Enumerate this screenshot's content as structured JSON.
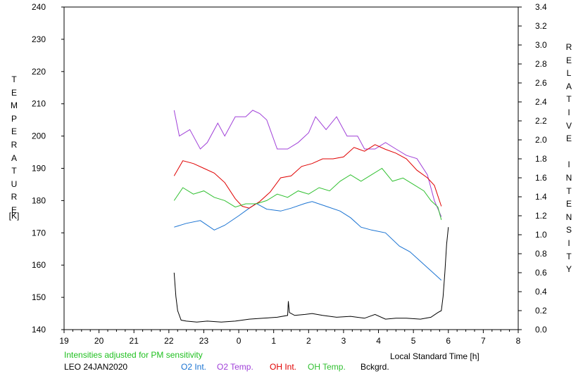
{
  "chart_data": {
    "type": "line",
    "ylabel_left": "TEMPERATURE",
    "ylabel_left_unit": "[K]",
    "ylabel_right": "RELATIVE INTENSITY",
    "xlabel": "Local Standard Time [h]",
    "note": "Intensities adjusted for PM sensitivity",
    "station_date": "LEO 24JAN2020",
    "x_ticks": [
      "19",
      "20",
      "21",
      "22",
      "23",
      "0",
      "1",
      "2",
      "3",
      "4",
      "5",
      "6",
      "7",
      "8"
    ],
    "y_left_ticks": [
      140,
      150,
      160,
      170,
      180,
      190,
      200,
      210,
      220,
      230,
      240
    ],
    "y_right_ticks": [
      "0.0",
      "0.2",
      "0.4",
      "0.6",
      "0.8",
      "1.0",
      "1.2",
      "1.4",
      "1.6",
      "1.8",
      "2.0",
      "2.2",
      "2.4",
      "2.6",
      "2.8",
      "3.0",
      "3.2",
      "3.4"
    ],
    "xlim": [
      19,
      32
    ],
    "ylim_left": [
      140,
      240
    ],
    "ylim_right": [
      0,
      3.4
    ],
    "colors": {
      "o2_int": "#1a73d2",
      "o2_temp": "#a040d8",
      "oh_int": "#e00000",
      "oh_temp": "#30c030",
      "bckgrd": "#000000",
      "note": "#20c020"
    },
    "legend": [
      "O2 Int.",
      "O2 Temp.",
      "OH Int.",
      "OH Temp.",
      "Bckgrd."
    ],
    "series": [
      {
        "name": "O2 Int.",
        "axis": "right",
        "x": [
          22.15,
          22.5,
          22.9,
          23.3,
          23.6,
          24.0,
          24.3,
          24.5,
          24.8,
          25.2,
          25.5,
          25.9,
          26.1,
          26.5,
          26.9,
          27.2,
          27.5,
          27.8,
          28.2,
          28.6,
          28.9,
          29.2,
          29.5,
          29.8
        ],
        "y": [
          1.08,
          1.12,
          1.15,
          1.05,
          1.1,
          1.2,
          1.28,
          1.33,
          1.27,
          1.25,
          1.28,
          1.33,
          1.35,
          1.3,
          1.25,
          1.18,
          1.08,
          1.05,
          1.02,
          0.88,
          0.82,
          0.72,
          0.62,
          0.52
        ]
      },
      {
        "name": "O2 Temp.",
        "axis": "left",
        "x": [
          22.15,
          22.3,
          22.6,
          22.9,
          23.1,
          23.4,
          23.6,
          23.9,
          24.2,
          24.4,
          24.6,
          24.8,
          25.1,
          25.4,
          25.7,
          26.0,
          26.2,
          26.5,
          26.8,
          27.1,
          27.4,
          27.6,
          27.9,
          28.2,
          28.5,
          28.8,
          29.1,
          29.4,
          29.6,
          29.8
        ],
        "y": [
          208,
          200,
          202,
          196,
          198,
          204,
          200,
          206,
          206,
          208,
          207,
          205,
          196,
          196,
          198,
          201,
          206,
          202,
          206,
          200,
          200,
          196,
          196,
          198,
          196,
          194,
          193,
          188,
          180,
          175
        ]
      },
      {
        "name": "OH Int.",
        "axis": "right",
        "x": [
          22.15,
          22.4,
          22.7,
          23.0,
          23.3,
          23.6,
          23.9,
          24.1,
          24.3,
          24.6,
          24.9,
          25.2,
          25.5,
          25.8,
          26.1,
          26.4,
          26.7,
          27.0,
          27.3,
          27.6,
          27.9,
          28.2,
          28.5,
          28.8,
          29.1,
          29.4,
          29.6,
          29.8
        ],
        "y": [
          1.62,
          1.78,
          1.75,
          1.7,
          1.65,
          1.55,
          1.38,
          1.3,
          1.28,
          1.35,
          1.45,
          1.6,
          1.62,
          1.72,
          1.75,
          1.8,
          1.8,
          1.82,
          1.92,
          1.88,
          1.95,
          1.9,
          1.86,
          1.8,
          1.68,
          1.6,
          1.52,
          1.3
        ]
      },
      {
        "name": "OH Temp.",
        "axis": "left",
        "x": [
          22.15,
          22.4,
          22.7,
          23.0,
          23.3,
          23.6,
          23.9,
          24.2,
          24.5,
          24.8,
          25.1,
          25.4,
          25.7,
          26.0,
          26.3,
          26.6,
          26.9,
          27.2,
          27.5,
          27.8,
          28.1,
          28.4,
          28.7,
          29.0,
          29.3,
          29.5,
          29.7,
          29.8
        ],
        "y": [
          180,
          184,
          182,
          183,
          181,
          180,
          178,
          179,
          179,
          180,
          182,
          181,
          183,
          182,
          184,
          183,
          186,
          188,
          186,
          188,
          190,
          186,
          187,
          185,
          183,
          180,
          178,
          174
        ]
      },
      {
        "name": "Bckgrd.",
        "axis": "right",
        "x": [
          22.15,
          22.2,
          22.25,
          22.35,
          22.5,
          22.8,
          23.1,
          23.5,
          23.9,
          24.3,
          24.7,
          25.1,
          25.4,
          25.42,
          25.45,
          25.6,
          25.9,
          26.1,
          26.4,
          26.8,
          27.2,
          27.6,
          27.9,
          28.2,
          28.5,
          28.8,
          29.2,
          29.5,
          29.7,
          29.8,
          29.85,
          29.9,
          29.95,
          30.0
        ],
        "y": [
          0.6,
          0.35,
          0.2,
          0.1,
          0.09,
          0.08,
          0.09,
          0.08,
          0.09,
          0.11,
          0.12,
          0.13,
          0.15,
          0.3,
          0.18,
          0.15,
          0.16,
          0.17,
          0.15,
          0.13,
          0.14,
          0.12,
          0.16,
          0.11,
          0.12,
          0.12,
          0.11,
          0.13,
          0.18,
          0.2,
          0.35,
          0.6,
          0.9,
          1.08
        ]
      }
    ]
  }
}
